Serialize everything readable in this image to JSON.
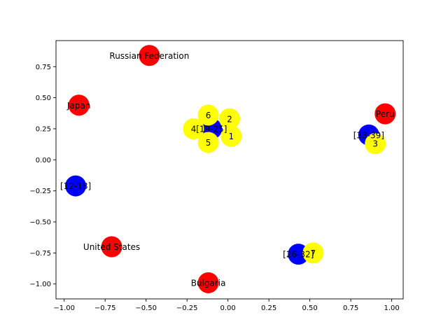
{
  "chart_data": {
    "type": "scatter",
    "title": "",
    "xlabel": "",
    "ylabel": "",
    "xlim": [
      -1.05,
      1.07
    ],
    "ylim": [
      -1.12,
      0.96
    ],
    "grid": false,
    "x_ticks": [
      -1.0,
      -0.75,
      -0.5,
      -0.25,
      0.0,
      0.25,
      0.5,
      0.75,
      1.0
    ],
    "x_tick_labels": [
      "−1.00",
      "−0.75",
      "−0.50",
      "−0.25",
      "0.00",
      "0.25",
      "0.50",
      "0.75",
      "1.00"
    ],
    "y_ticks": [
      -1.0,
      -0.75,
      -0.5,
      -0.25,
      0.0,
      0.25,
      0.5,
      0.75
    ],
    "y_tick_labels": [
      "−1.00",
      "−0.75",
      "−0.50",
      "−0.25",
      "0.00",
      "0.25",
      "0.50",
      "0.75"
    ],
    "points": [
      {
        "x": -0.48,
        "y": 0.84,
        "color": "#ff0000",
        "label": "Russian Federation"
      },
      {
        "x": -0.91,
        "y": 0.44,
        "color": "#ff0000",
        "label": "Japan"
      },
      {
        "x": 0.96,
        "y": 0.37,
        "color": "#ff0000",
        "label": "Peru"
      },
      {
        "x": -0.71,
        "y": -0.7,
        "color": "#ff0000",
        "label": "United States"
      },
      {
        "x": -0.12,
        "y": -0.99,
        "color": "#ff0000",
        "label": "Bulgaria"
      },
      {
        "x": -0.93,
        "y": -0.21,
        "color": "#0000ff",
        "label": "[12-18]"
      },
      {
        "x": -0.1,
        "y": 0.25,
        "color": "#0000ff",
        "label": "[19-25]"
      },
      {
        "x": 0.86,
        "y": 0.2,
        "color": "#0000ff",
        "label": "[33-39]"
      },
      {
        "x": 0.43,
        "y": -0.76,
        "color": "#0000ff",
        "label": "[26-32]"
      },
      {
        "x": -0.12,
        "y": 0.36,
        "color": "#ffff00",
        "label": "6"
      },
      {
        "x": 0.01,
        "y": 0.33,
        "color": "#ffff00",
        "label": "2"
      },
      {
        "x": -0.21,
        "y": 0.25,
        "color": "#ffff00",
        "label": "4"
      },
      {
        "x": 0.02,
        "y": 0.19,
        "color": "#ffff00",
        "label": "1"
      },
      {
        "x": -0.12,
        "y": 0.14,
        "color": "#ffff00",
        "label": "5"
      },
      {
        "x": 0.9,
        "y": 0.13,
        "color": "#ffff00",
        "label": "3"
      },
      {
        "x": 0.52,
        "y": -0.75,
        "color": "#ffff00",
        "label": "7"
      }
    ]
  }
}
